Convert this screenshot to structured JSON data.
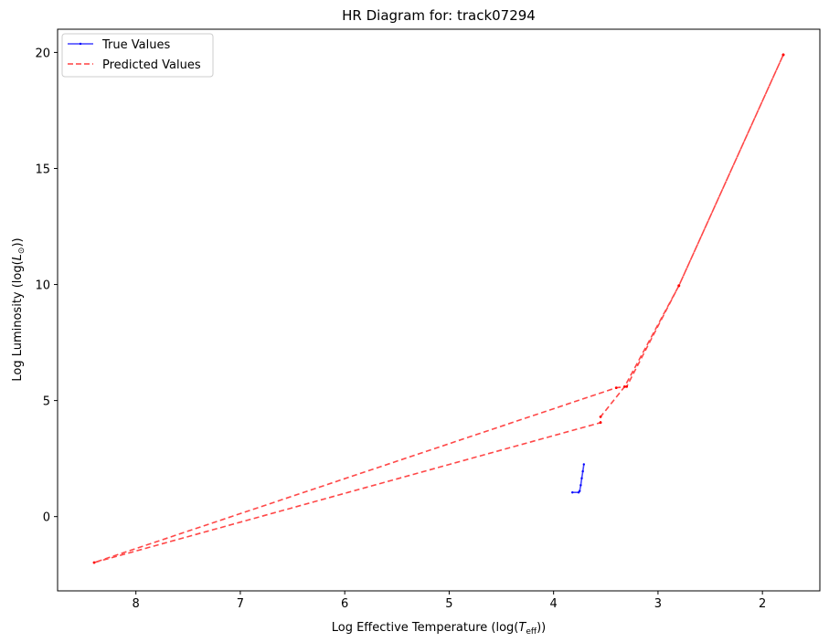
{
  "chart_data": {
    "type": "line",
    "title": "HR Diagram for: track07294",
    "xlabel": "Log Effective Temperature (log(T_eff))",
    "xlabel_parts": {
      "prefix": "Log Effective Temperature (log(",
      "var": "T",
      "sub": "eff",
      "suffix": "))"
    },
    "ylabel": "Log Luminosity (log(L_⊙))",
    "ylabel_parts": {
      "prefix": "Log Luminosity (log(",
      "var": "L",
      "sub": "⊙",
      "suffix": "))"
    },
    "xlim": [
      8.75,
      1.45
    ],
    "ylim": [
      -3.2,
      21.0
    ],
    "x_inverted": true,
    "xticks": [
      8,
      7,
      6,
      5,
      4,
      3,
      2
    ],
    "yticks": [
      0,
      5,
      10,
      15,
      20
    ],
    "grid": false,
    "legend_position": "top-left",
    "series": [
      {
        "name": "True Values",
        "color": "#0000ff",
        "style": "solid-with-dots",
        "x": [
          3.82,
          3.76,
          3.75,
          3.74,
          3.73,
          3.72,
          3.71
        ],
        "y": [
          1.04,
          1.04,
          1.1,
          1.35,
          1.65,
          1.95,
          2.25
        ]
      },
      {
        "name": "Predicted Values",
        "color": "#ff0000",
        "style": "dashed",
        "x": [
          1.8,
          2.8,
          3.3,
          3.4,
          8.4,
          3.55,
          3.55,
          3.32,
          2.8,
          1.8
        ],
        "y": [
          19.9,
          9.95,
          5.6,
          5.55,
          -1.98,
          4.05,
          4.3,
          5.6,
          9.95,
          19.9
        ]
      }
    ]
  }
}
